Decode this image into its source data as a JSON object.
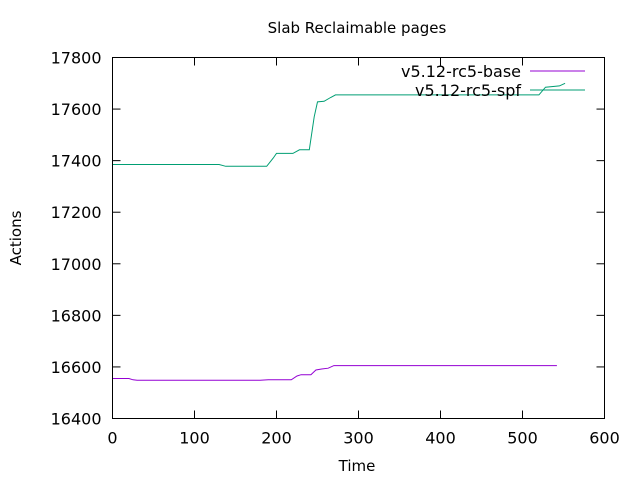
{
  "chart_data": {
    "type": "line",
    "title": "Slab Reclaimable pages",
    "xlabel": "Time",
    "ylabel": "Actions",
    "xlim": [
      0,
      600
    ],
    "ylim": [
      16400,
      17800
    ],
    "xticks": [
      "0",
      "100",
      "200",
      "300",
      "400",
      "500",
      "600"
    ],
    "yticks": [
      "16400",
      "16600",
      "16800",
      "17000",
      "17200",
      "17400",
      "17600",
      "17800"
    ],
    "grid": false,
    "legend_position": "top-right",
    "series": [
      {
        "name": "v5.12-rc5-base",
        "color": "#9400d3",
        "points": [
          [
            0,
            16555
          ],
          [
            20,
            16555
          ],
          [
            25,
            16550
          ],
          [
            30,
            16548
          ],
          [
            180,
            16548
          ],
          [
            190,
            16550
          ],
          [
            218,
            16550
          ],
          [
            225,
            16565
          ],
          [
            230,
            16570
          ],
          [
            242,
            16570
          ],
          [
            248,
            16588
          ],
          [
            255,
            16592
          ],
          [
            263,
            16595
          ],
          [
            270,
            16605
          ],
          [
            542,
            16605
          ]
        ]
      },
      {
        "name": "v5.12-rc5-spf",
        "color": "#009e73",
        "points": [
          [
            0,
            17385
          ],
          [
            130,
            17385
          ],
          [
            138,
            17378
          ],
          [
            188,
            17378
          ],
          [
            196,
            17410
          ],
          [
            200,
            17428
          ],
          [
            220,
            17428
          ],
          [
            228,
            17442
          ],
          [
            240,
            17442
          ],
          [
            246,
            17570
          ],
          [
            250,
            17628
          ],
          [
            258,
            17630
          ],
          [
            266,
            17645
          ],
          [
            272,
            17655
          ],
          [
            520,
            17655
          ],
          [
            528,
            17685
          ],
          [
            545,
            17690
          ],
          [
            552,
            17700
          ]
        ]
      }
    ]
  }
}
